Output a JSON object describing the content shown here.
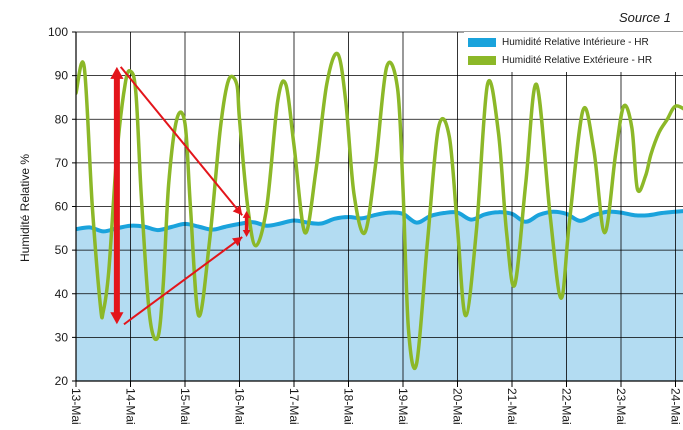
{
  "source_label": "Source 1",
  "colors": {
    "interior_fill": "#b3dcf2",
    "interior_line": "#1aa3dc",
    "exterior_line": "#8cb828",
    "annotation": "#e3151b",
    "grid": "#000000"
  },
  "chart_data": {
    "type": "area",
    "title": "",
    "ylabel": "Humidité Relative %",
    "xlabel": "",
    "ylim": [
      20,
      100
    ],
    "yticks": [
      20,
      30,
      40,
      50,
      60,
      70,
      80,
      90,
      100
    ],
    "xlim": [
      0,
      11.2
    ],
    "categories": [
      "13-Mai",
      "14-Mai",
      "15-Mai",
      "16-Mai",
      "17-Mai",
      "18-Mai",
      "19-Mai",
      "20-Mai",
      "21-Mai",
      "22-Mai",
      "23-Mai",
      "24-Mai"
    ],
    "grid": true,
    "legend_position": "top-right",
    "series": [
      {
        "name": "Humidité Relative Intérieure - HR",
        "x": [
          0,
          0.25,
          0.5,
          0.75,
          1.0,
          1.25,
          1.5,
          1.75,
          2.0,
          2.25,
          2.5,
          2.75,
          3.0,
          3.25,
          3.5,
          3.75,
          4.0,
          4.25,
          4.5,
          4.75,
          5.0,
          5.25,
          5.5,
          5.75,
          6.0,
          6.25,
          6.5,
          6.75,
          7.0,
          7.25,
          7.5,
          7.75,
          8.0,
          8.25,
          8.5,
          8.75,
          9.0,
          9.25,
          9.5,
          9.75,
          10.0,
          10.25,
          10.5,
          10.75,
          11.0,
          11.2
        ],
        "values": [
          54.8,
          55.2,
          54.3,
          55.0,
          55.6,
          55.4,
          54.6,
          55.3,
          56.0,
          55.4,
          54.7,
          55.4,
          56.0,
          56.4,
          55.6,
          56.1,
          56.8,
          56.3,
          56.1,
          57.2,
          57.6,
          57.3,
          58.1,
          58.6,
          58.3,
          56.3,
          57.8,
          58.5,
          58.6,
          57.0,
          58.2,
          58.7,
          58.3,
          56.5,
          58.1,
          58.8,
          58.3,
          56.7,
          58.0,
          58.8,
          58.6,
          58.0,
          58.0,
          58.5,
          58.8,
          59.0
        ]
      },
      {
        "name": "Humidité Relative Extérieure - HR",
        "x": [
          0,
          0.15,
          0.3,
          0.45,
          0.5,
          0.6,
          0.75,
          0.9,
          1.0,
          1.1,
          1.2,
          1.35,
          1.5,
          1.6,
          1.7,
          1.85,
          2.0,
          2.1,
          2.25,
          2.45,
          2.65,
          2.8,
          2.95,
          3.0,
          3.15,
          3.3,
          3.5,
          3.7,
          3.85,
          4.0,
          4.2,
          4.4,
          4.6,
          4.8,
          4.95,
          5.1,
          5.3,
          5.5,
          5.7,
          5.9,
          6.0,
          6.1,
          6.25,
          6.45,
          6.65,
          6.85,
          7.0,
          7.15,
          7.35,
          7.55,
          7.75,
          7.9,
          8.05,
          8.25,
          8.45,
          8.7,
          8.9,
          9.05,
          9.3,
          9.5,
          9.7,
          9.9,
          10.05,
          10.2,
          10.3,
          10.45,
          10.55,
          10.7,
          10.85,
          11.0,
          11.2
        ],
        "values": [
          86,
          92,
          60,
          37,
          36,
          45,
          72,
          88,
          91,
          86,
          62,
          35,
          30,
          42,
          65,
          80,
          79,
          60,
          35,
          52,
          78,
          89,
          88,
          80,
          60,
          51,
          60,
          84,
          88,
          74,
          54,
          68,
          88,
          95,
          84,
          63,
          54,
          70,
          92,
          87,
          64,
          32,
          24,
          52,
          78,
          76,
          55,
          35,
          55,
          88,
          77,
          54,
          42,
          65,
          88,
          58,
          39,
          56,
          82,
          73,
          54,
          72,
          83,
          78,
          64,
          67,
          72,
          77,
          80,
          83,
          82
        ]
      }
    ],
    "annotations": [
      {
        "kind": "double-arrow",
        "x": 0.75,
        "y1": 33,
        "y2": 92
      },
      {
        "kind": "double-arrow",
        "x": 3.13,
        "y1": 53,
        "y2": 59
      },
      {
        "kind": "arrow",
        "from": [
          0.82,
          92
        ],
        "to": [
          3.05,
          58
        ]
      },
      {
        "kind": "arrow",
        "from": [
          0.88,
          33
        ],
        "to": [
          3.05,
          53
        ]
      }
    ]
  }
}
